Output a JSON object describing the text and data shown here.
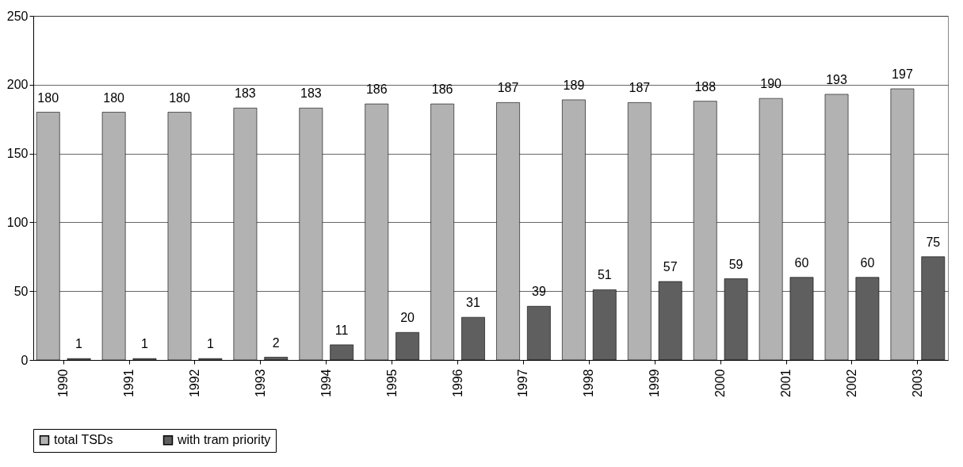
{
  "chart_data": {
    "type": "bar",
    "categories": [
      "1990",
      "1991",
      "1992",
      "1993",
      "1994",
      "1995",
      "1996",
      "1997",
      "1998",
      "1999",
      "2000",
      "2001",
      "2002",
      "2003"
    ],
    "series": [
      {
        "name": "total TSDs",
        "color": "#b2b2b2",
        "values": [
          180,
          180,
          180,
          183,
          183,
          186,
          186,
          187,
          189,
          187,
          188,
          190,
          193,
          197
        ]
      },
      {
        "name": "with tram priority",
        "color": "#5f5f5f",
        "values": [
          1,
          1,
          1,
          2,
          11,
          20,
          31,
          39,
          51,
          57,
          59,
          60,
          60,
          75
        ]
      }
    ],
    "ylim": [
      0,
      250
    ],
    "yticks": [
      0,
      50,
      100,
      150,
      200,
      250
    ],
    "grid": "y",
    "legend": "bottom",
    "data_labels": true
  }
}
